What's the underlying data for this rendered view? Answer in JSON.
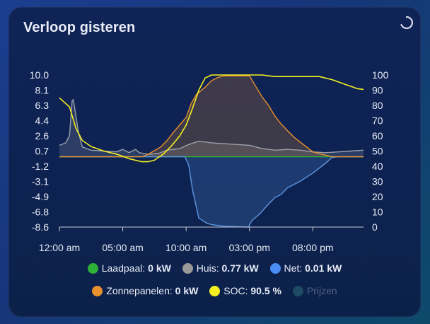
{
  "card": {
    "title": "Verloop gisteren",
    "loading_icon": "spinner-icon"
  },
  "legend": [
    {
      "key": "laadpaal",
      "label": "Laadpaal:",
      "value": "0 kW",
      "color": "#2eb135",
      "active": true
    },
    {
      "key": "huis",
      "label": "Huis:",
      "value": "0.77 kW",
      "color": "#9a9a9a",
      "active": true
    },
    {
      "key": "net",
      "label": "Net:",
      "value": "0.01 kW",
      "color": "#4a8ef5",
      "active": true
    },
    {
      "key": "zonnepanelen",
      "label": "Zonnepanelen:",
      "value": "0 kW",
      "color": "#e8912d",
      "active": true
    },
    {
      "key": "soc",
      "label": "SOC:",
      "value": "90.5 %",
      "color": "#f5f020",
      "active": true
    },
    {
      "key": "prijzen",
      "label": "Prijzen",
      "value": "",
      "color": "#1e4a66",
      "active": false
    }
  ],
  "chart_data": {
    "type": "line",
    "x_ticks": [
      "12:00 am",
      "05:00 am",
      "10:00 am",
      "03:00 pm",
      "08:00 pm"
    ],
    "x_tick_hours": [
      0,
      5,
      10,
      15,
      20
    ],
    "x_range_hours": [
      0,
      24
    ],
    "y_left_ticks": [
      "10.0",
      "8.1",
      "6.3",
      "4.4",
      "2.6",
      "0.7",
      "-1.2",
      "-3.1",
      "-4.9",
      "-6.8",
      "-8.6"
    ],
    "y_left_range": [
      -8.6,
      10.0
    ],
    "y_right_ticks": [
      "100",
      "90",
      "80",
      "70",
      "60",
      "50",
      "40",
      "30",
      "20",
      "10",
      "0"
    ],
    "y_right_range": [
      0,
      100
    ],
    "series": [
      {
        "name": "Laadpaal",
        "axis": "left",
        "color": "#2eb135",
        "fill": false,
        "points": [
          [
            0,
            0
          ],
          [
            24,
            0
          ]
        ]
      },
      {
        "name": "Huis",
        "axis": "left",
        "color": "#9aa0aa",
        "fill": true,
        "points": [
          [
            0,
            1.4
          ],
          [
            0.5,
            1.7
          ],
          [
            0.8,
            2.6
          ],
          [
            1.0,
            6.8
          ],
          [
            1.1,
            7.0
          ],
          [
            1.3,
            5.0
          ],
          [
            1.5,
            3.0
          ],
          [
            1.8,
            1.2
          ],
          [
            2.5,
            0.8
          ],
          [
            3.5,
            0.7
          ],
          [
            4.5,
            0.6
          ],
          [
            5.0,
            0.9
          ],
          [
            5.5,
            0.5
          ],
          [
            6.0,
            0.9
          ],
          [
            6.3,
            0.5
          ],
          [
            7.0,
            0.3
          ],
          [
            7.8,
            0.4
          ],
          [
            8.5,
            0.8
          ],
          [
            9.5,
            1.0
          ],
          [
            10.2,
            1.5
          ],
          [
            11,
            1.9
          ],
          [
            12,
            1.7
          ],
          [
            13,
            1.6
          ],
          [
            14,
            1.5
          ],
          [
            15,
            1.4
          ],
          [
            16,
            1.0
          ],
          [
            17,
            0.8
          ],
          [
            18,
            0.9
          ],
          [
            19,
            0.8
          ],
          [
            20,
            0.6
          ],
          [
            21,
            0.5
          ],
          [
            22,
            0.6
          ],
          [
            23,
            0.7
          ],
          [
            24,
            0.8
          ]
        ]
      },
      {
        "name": "Net",
        "axis": "left",
        "color": "#5a95e0",
        "fill": true,
        "points": [
          [
            0,
            0
          ],
          [
            8.5,
            0
          ],
          [
            9.9,
            0
          ],
          [
            10.2,
            -1.0
          ],
          [
            10.5,
            -4.0
          ],
          [
            11,
            -7.5
          ],
          [
            11.6,
            -8.1
          ],
          [
            12,
            -8.3
          ],
          [
            13,
            -8.5
          ],
          [
            14.9,
            -8.6
          ],
          [
            15.2,
            -7.8
          ],
          [
            15.8,
            -7.0
          ],
          [
            16.5,
            -5.8
          ],
          [
            17,
            -5.0
          ],
          [
            17.5,
            -4.6
          ],
          [
            18,
            -3.8
          ],
          [
            19,
            -3.0
          ],
          [
            20,
            -2.0
          ],
          [
            21,
            -0.8
          ],
          [
            21.5,
            -0.1
          ],
          [
            22,
            0.0
          ],
          [
            24,
            0.0
          ]
        ]
      },
      {
        "name": "Zonnepanelen",
        "axis": "left",
        "color": "#e8912d",
        "fill": true,
        "points": [
          [
            0,
            0
          ],
          [
            6.5,
            0
          ],
          [
            7.0,
            0.3
          ],
          [
            8.0,
            1.2
          ],
          [
            8.5,
            2.0
          ],
          [
            9.0,
            3.0
          ],
          [
            9.5,
            3.9
          ],
          [
            10.0,
            4.8
          ],
          [
            10.4,
            6.5
          ],
          [
            10.8,
            7.6
          ],
          [
            11.5,
            8.5
          ],
          [
            12,
            9.3
          ],
          [
            12.5,
            9.7
          ],
          [
            13,
            9.9
          ],
          [
            15,
            9.9
          ],
          [
            15.5,
            8.6
          ],
          [
            16,
            7.3
          ],
          [
            16.5,
            6.3
          ],
          [
            17,
            5.0
          ],
          [
            17.5,
            4.0
          ],
          [
            18,
            3.2
          ],
          [
            18.5,
            2.4
          ],
          [
            19,
            1.8
          ],
          [
            19.5,
            1.2
          ],
          [
            20,
            0.6
          ],
          [
            21,
            0.2
          ],
          [
            21.5,
            0
          ],
          [
            24,
            0
          ]
        ]
      },
      {
        "name": "SOC",
        "axis": "right",
        "color": "#f5f020",
        "fill": false,
        "points": [
          [
            0,
            85
          ],
          [
            0.8,
            79
          ],
          [
            1.3,
            65
          ],
          [
            1.8,
            57
          ],
          [
            2.5,
            53
          ],
          [
            3.5,
            50
          ],
          [
            4.5,
            48
          ],
          [
            5.5,
            45
          ],
          [
            6.5,
            43
          ],
          [
            7.0,
            43
          ],
          [
            7.5,
            44
          ],
          [
            8.2,
            48
          ],
          [
            8.8,
            53
          ],
          [
            9.5,
            60
          ],
          [
            10,
            67
          ],
          [
            10.5,
            78
          ],
          [
            11,
            90
          ],
          [
            11.5,
            98
          ],
          [
            12,
            100
          ],
          [
            13,
            100
          ],
          [
            16,
            100
          ],
          [
            17,
            99
          ],
          [
            19,
            99
          ],
          [
            20.5,
            99
          ],
          [
            21.5,
            97
          ],
          [
            22.5,
            94
          ],
          [
            23.5,
            91
          ],
          [
            24,
            90.5
          ]
        ]
      }
    ]
  }
}
